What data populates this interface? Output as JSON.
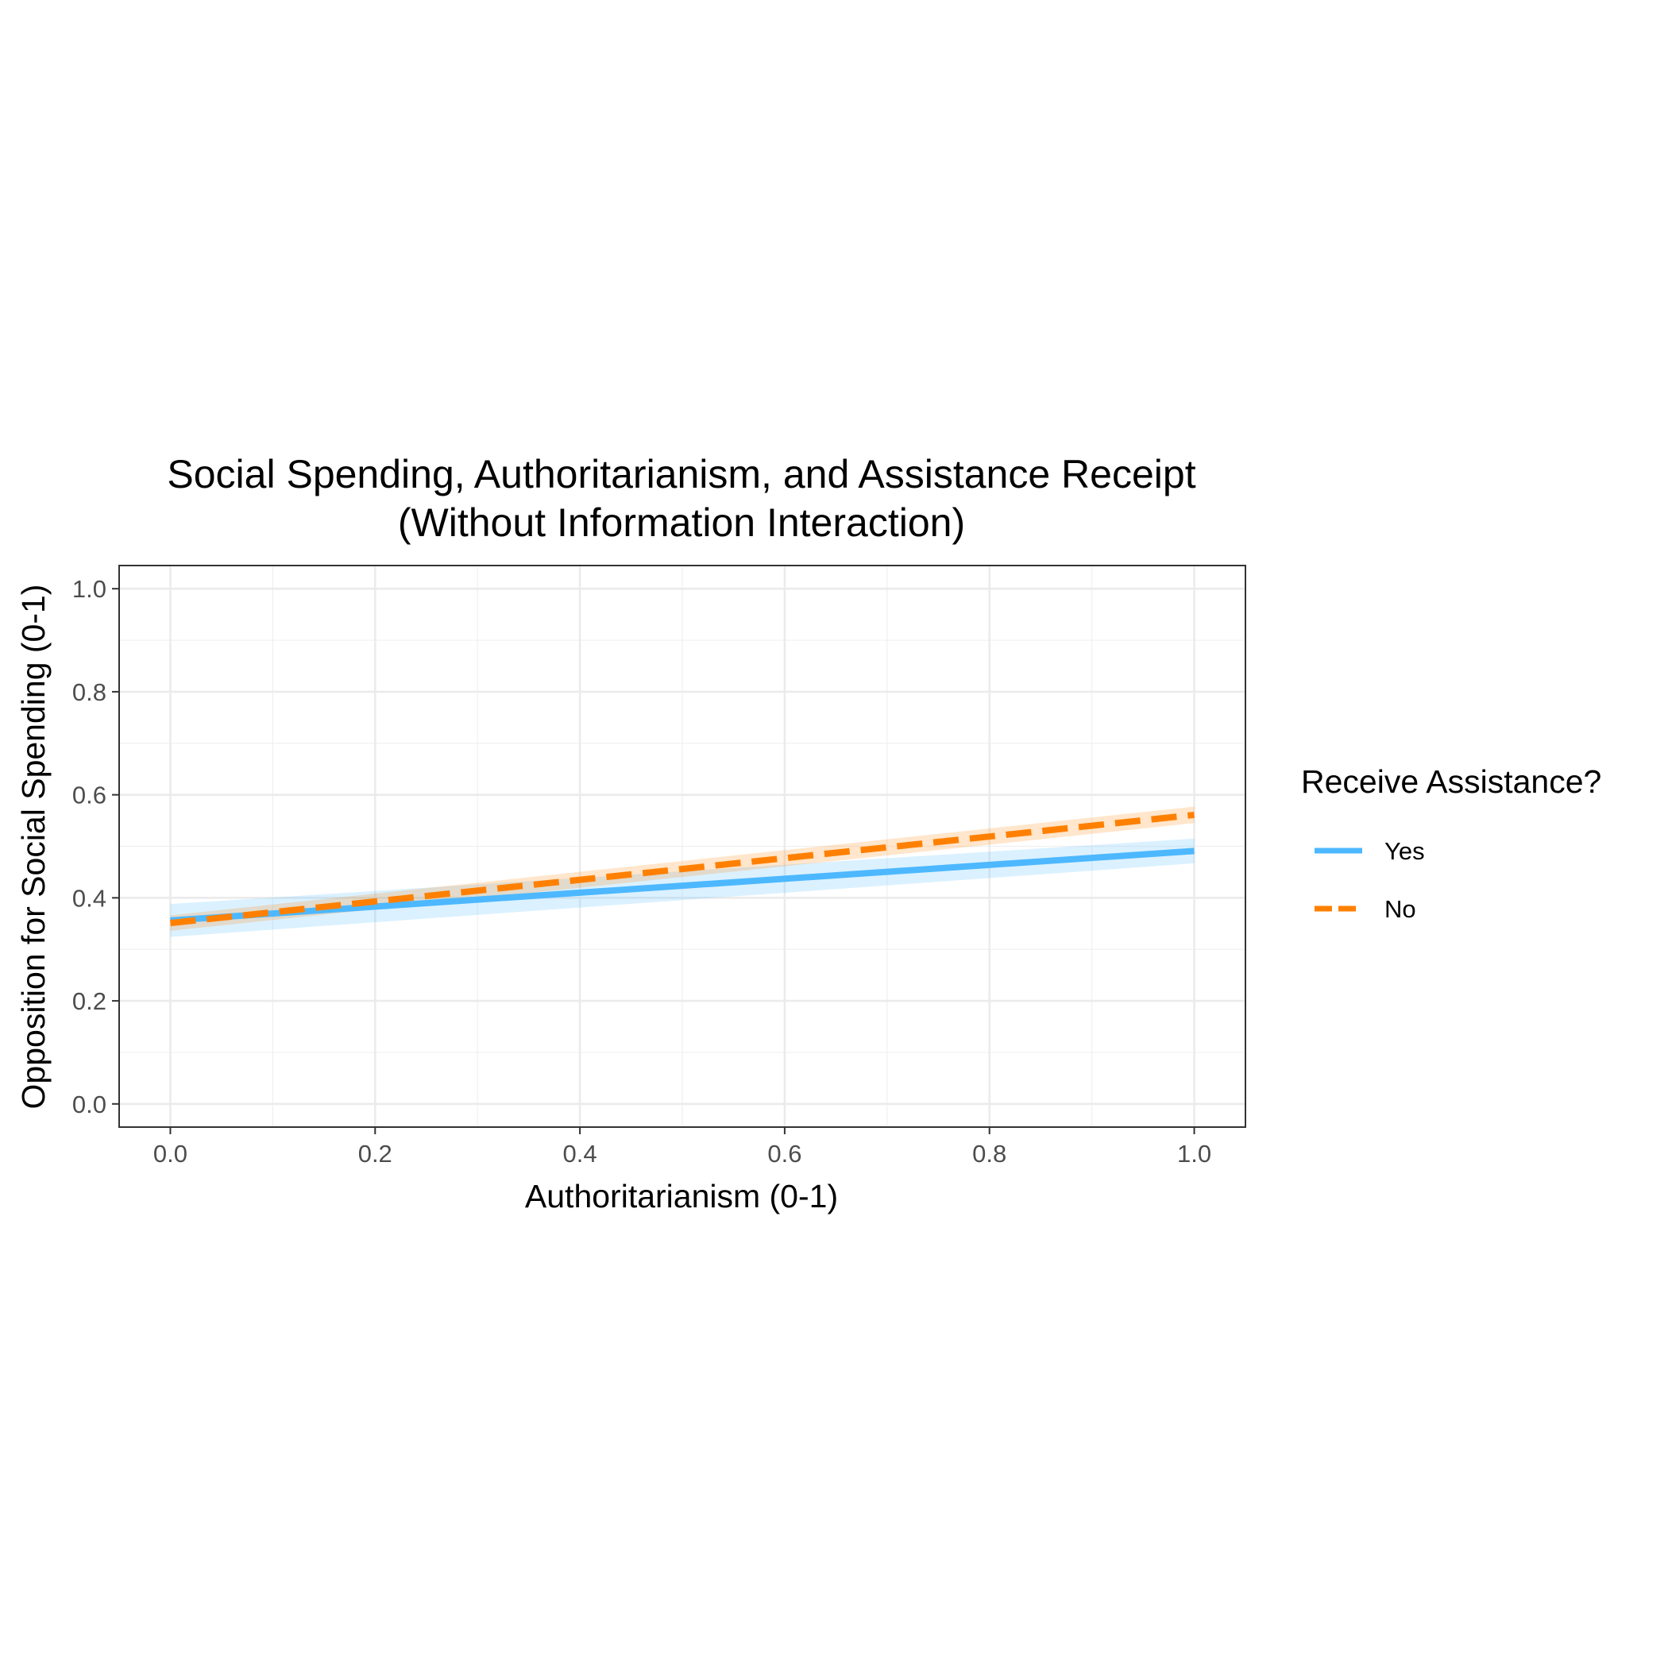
{
  "chart_data": {
    "type": "line",
    "title": "Social Spending, Authoritarianism, and Assistance Receipt",
    "subtitle": "(Without Information Interaction)",
    "xlabel": "Authoritarianism (0-1)",
    "ylabel": "Opposition for Social Spending (0-1)",
    "xlim": [
      -0.05,
      1.05
    ],
    "ylim": [
      -0.045,
      1.045
    ],
    "xticks": [
      "0.0",
      "0.2",
      "0.4",
      "0.6",
      "0.8",
      "1.0"
    ],
    "yticks": [
      "0.0",
      "0.2",
      "0.4",
      "0.6",
      "0.8",
      "1.0"
    ],
    "grid": true,
    "legend": {
      "title": "Receive Assistance?",
      "position": "right"
    },
    "x": [
      0,
      1
    ],
    "series": [
      {
        "name": "Yes",
        "color": "#4db8ff",
        "linestyle": "solid",
        "values": [
          0.356,
          0.491
        ],
        "lower": [
          0.324,
          0.467
        ],
        "upper": [
          0.388,
          0.515
        ]
      },
      {
        "name": "No",
        "color": "#ff8000",
        "linestyle": "dashed",
        "values": [
          0.351,
          0.561
        ],
        "lower": [
          0.336,
          0.545
        ],
        "upper": [
          0.366,
          0.577
        ]
      }
    ]
  }
}
